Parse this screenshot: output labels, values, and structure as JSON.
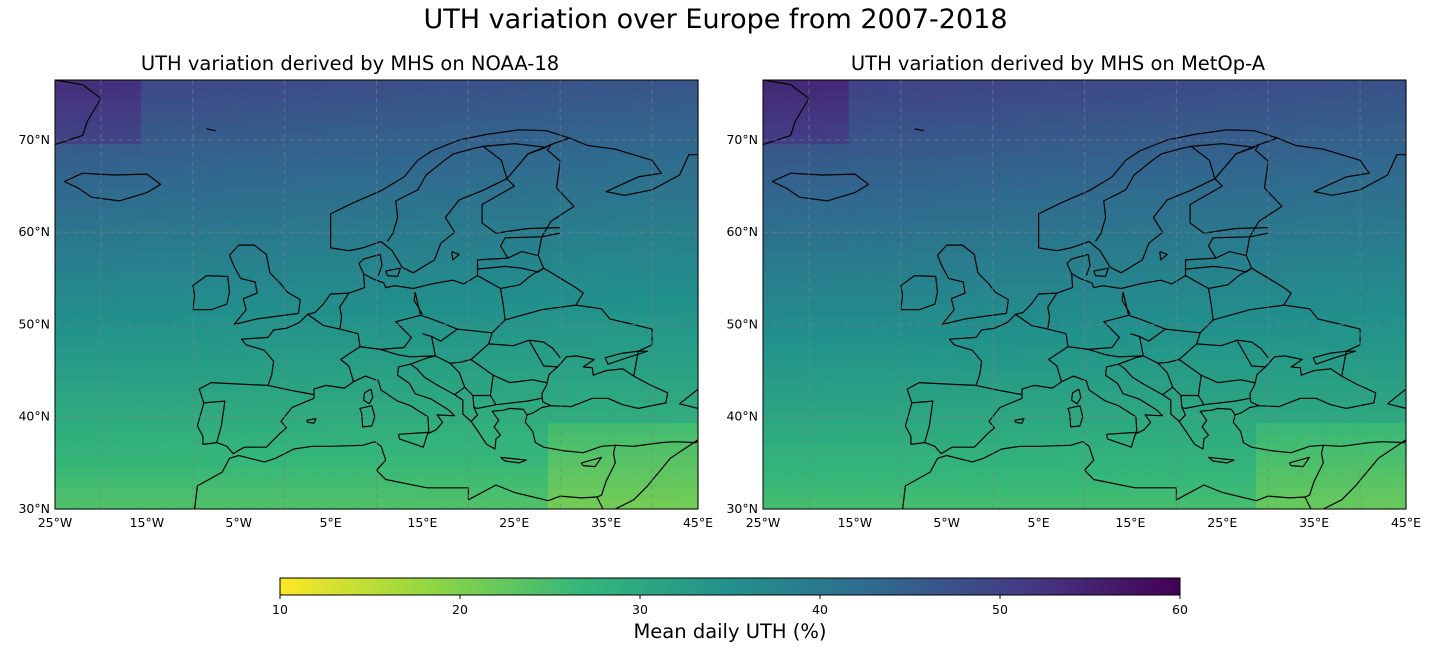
{
  "figure": {
    "title": "UTH variation over Europe from 2007-2018"
  },
  "colors": {
    "viridis_reversed": [
      "#fde725",
      "#90d743",
      "#35b779",
      "#21918c",
      "#31688e",
      "#443983",
      "#440154"
    ],
    "coastline": "#000000",
    "gridline": "#808080"
  },
  "axes": {
    "x_ticks": [
      "25°W",
      "15°W",
      "5°W",
      "5°E",
      "15°E",
      "25°E",
      "35°E",
      "45°E"
    ],
    "y_ticks": [
      "30°N",
      "40°N",
      "50°N",
      "60°N",
      "70°N"
    ],
    "lon_range": [
      -25,
      45
    ],
    "lat_range": [
      30,
      76.5
    ],
    "gridline_lons": [
      -20,
      -10,
      0,
      10,
      20,
      30,
      40
    ],
    "gridline_lats": [
      30,
      40,
      50,
      60,
      70
    ]
  },
  "panels": [
    {
      "title": "UTH variation derived by MHS on NOAA-18",
      "uth_north": 48,
      "uth_south": 24
    },
    {
      "title": "UTH variation derived by MHS on MetOp-A",
      "uth_north": 49,
      "uth_south": 25
    }
  ],
  "colorbar": {
    "label": "Mean daily UTH (%)",
    "ticks": [
      "10",
      "20",
      "30",
      "40",
      "50",
      "60"
    ],
    "min": 10,
    "max": 60
  }
}
